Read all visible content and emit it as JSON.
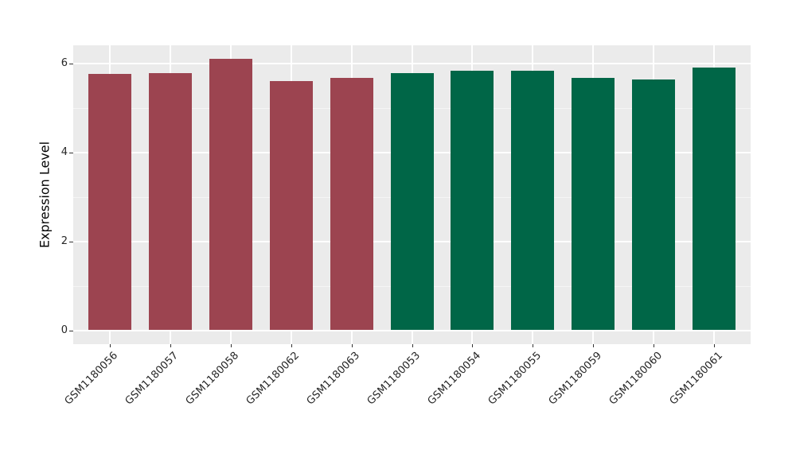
{
  "chart_data": {
    "type": "bar",
    "title": "",
    "xlabel": "",
    "ylabel": "Expression Level",
    "categories": [
      "GSM1180056",
      "GSM1180057",
      "GSM1180058",
      "GSM1180062",
      "GSM1180063",
      "GSM1180053",
      "GSM1180054",
      "GSM1180055",
      "GSM1180059",
      "GSM1180060",
      "GSM1180061"
    ],
    "values": [
      5.77,
      5.78,
      6.11,
      5.61,
      5.68,
      5.78,
      5.84,
      5.84,
      5.68,
      5.64,
      5.92
    ],
    "bar_colors": [
      "#9c4450",
      "#9c4450",
      "#9c4450",
      "#9c4450",
      "#9c4450",
      "#006647",
      "#006647",
      "#006647",
      "#006647",
      "#006647",
      "#006647"
    ],
    "ylim": [
      0,
      6.4
    ],
    "yticks": [
      0,
      2,
      4,
      6
    ],
    "yticks_minor": [
      1,
      3,
      5
    ],
    "x_tick_label_rotation": 45,
    "grid": "on",
    "legend": "none",
    "panel_background": "#ebebeb",
    "grid_major_color": "#ffffff",
    "grid_minor_color": "#f5f5f5"
  }
}
